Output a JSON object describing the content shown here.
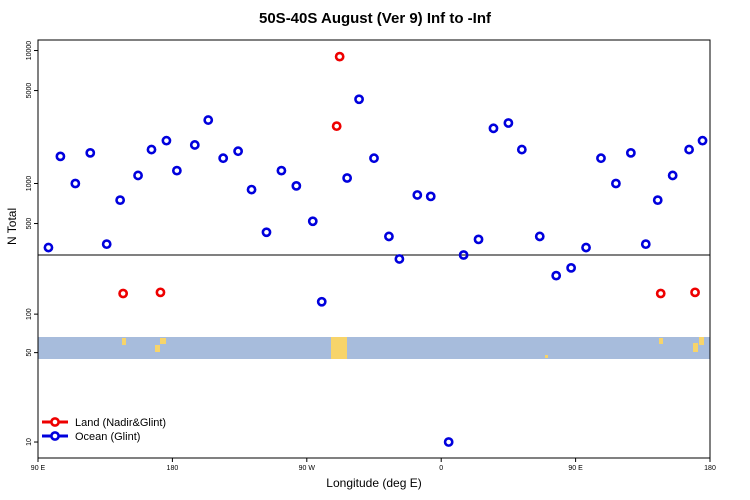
{
  "chart_data": {
    "type": "scatter",
    "title": "50S-40S August (Ver 9)   Inf to -Inf",
    "xlabel": "Longitude (deg E)",
    "ylabel": "N Total",
    "x_ticks": [
      {
        "value": 90,
        "label": "90 E"
      },
      {
        "value": 180,
        "label": "180"
      },
      {
        "value": 270,
        "label": "90 W"
      },
      {
        "value": 360,
        "label": "0"
      },
      {
        "value": 450,
        "label": "90 E"
      },
      {
        "value": 540,
        "label": "180"
      }
    ],
    "xlim": [
      90,
      540
    ],
    "upper_panel": {
      "scale": "log",
      "ylim": [
        290,
        12000
      ],
      "y_ticks": [
        {
          "value": 500,
          "label": "500"
        },
        {
          "value": 1000,
          "label": "1000"
        },
        {
          "value": 5000,
          "label": "5000"
        },
        {
          "value": 10000,
          "label": "10000"
        }
      ]
    },
    "lower_panel": {
      "scale": "log",
      "ylim": [
        7.5,
        290
      ],
      "y_ticks": [
        {
          "value": 10,
          "label": "10"
        },
        {
          "value": 50,
          "label": "50"
        },
        {
          "value": 100,
          "label": "100"
        }
      ]
    },
    "series": [
      {
        "name": "Land (Nadir&Glint)",
        "color": "#ee0000",
        "x": [
          147,
          172,
          290,
          292,
          507,
          530
        ],
        "y": [
          145,
          148,
          2700,
          9000,
          145,
          148
        ]
      },
      {
        "name": "Ocean (Glint)",
        "color": "#0000dd",
        "x": [
          97,
          105,
          115,
          125,
          136,
          145,
          157,
          166,
          176,
          183,
          195,
          204,
          214,
          224,
          233,
          243,
          253,
          263,
          274,
          280,
          297,
          305,
          315,
          325,
          332,
          344,
          353,
          365,
          375,
          385,
          395,
          405,
          414,
          426,
          437,
          447,
          457,
          467,
          477,
          487,
          497,
          505,
          515,
          526,
          535
        ],
        "y": [
          330,
          1600,
          1000,
          1700,
          350,
          750,
          1150,
          1800,
          2100,
          1250,
          1950,
          3000,
          1550,
          1750,
          900,
          430,
          1250,
          960,
          520,
          125,
          1100,
          4300,
          1550,
          400,
          270,
          820,
          800,
          10,
          290,
          380,
          2600,
          2850,
          1800,
          400,
          200,
          230,
          330,
          1550,
          1000,
          1700,
          350,
          750,
          1150,
          1800,
          2100
        ]
      }
    ],
    "legend": {
      "position": "bottom-left",
      "entries": [
        {
          "label": "Land (Nadir&Glint)",
          "color": "#ee0000"
        },
        {
          "label": "Ocean (Glint)",
          "color": "#0000dd"
        }
      ]
    },
    "ocean_band_color": "#a7bcdc",
    "land_patch_color": "#f7d46a"
  }
}
